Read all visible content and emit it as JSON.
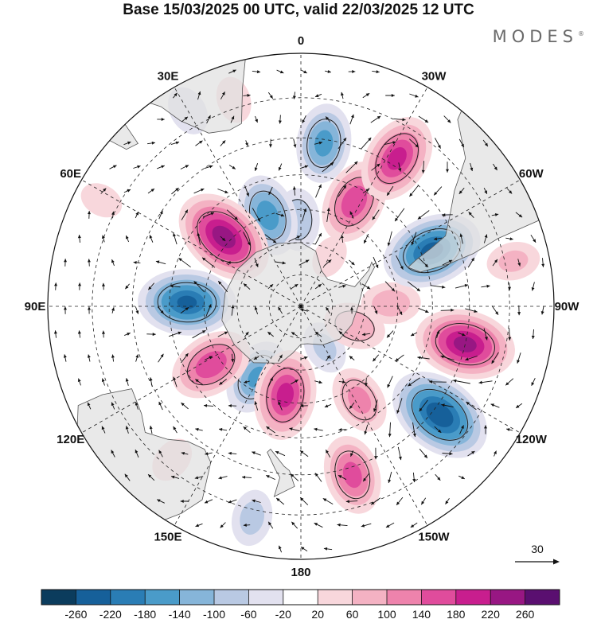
{
  "title": "Base 15/03/2025 00 UTC, valid 22/03/2025 12 UTC",
  "brand": {
    "name": "MODES",
    "mark": "®"
  },
  "map": {
    "projection": "south-polar-stereographic",
    "longitude_labels": [
      {
        "text": "0",
        "lon": 0
      },
      {
        "text": "30E",
        "lon": 30
      },
      {
        "text": "60E",
        "lon": 60
      },
      {
        "text": "90E",
        "lon": 90
      },
      {
        "text": "120E",
        "lon": 120
      },
      {
        "text": "150E",
        "lon": 150
      },
      {
        "text": "180",
        "lon": 180
      },
      {
        "text": "150W",
        "lon": -150
      },
      {
        "text": "120W",
        "lon": -120
      },
      {
        "text": "90W",
        "lon": -90
      },
      {
        "text": "60W",
        "lon": -60
      },
      {
        "text": "30W",
        "lon": -30
      }
    ],
    "latitude_circles": [
      -80,
      -70,
      -60,
      -50,
      -40,
      -30,
      -20
    ],
    "outer_latitude": -20,
    "anomalies": [
      {
        "lon": -8,
        "lat": -41,
        "value": -160
      },
      {
        "lon": -33,
        "lat": -38,
        "value": 200
      },
      {
        "lon": -27,
        "lat": -54,
        "value": 180
      },
      {
        "lon": -67,
        "lat": -47,
        "value": -240
      },
      {
        "lon": -103,
        "lat": -40,
        "value": 240
      },
      {
        "lon": -148,
        "lat": -56,
        "value": 120
      },
      {
        "lon": -128,
        "lat": -38,
        "value": -260
      },
      {
        "lon": -110,
        "lat": -72,
        "value": 100
      },
      {
        "lon": -163,
        "lat": -38,
        "value": 160
      },
      {
        "lon": 170,
        "lat": -62,
        "value": 200
      },
      {
        "lon": 148,
        "lat": -64,
        "value": -150
      },
      {
        "lon": 167,
        "lat": -28,
        "value": -80
      },
      {
        "lon": 123,
        "lat": -57,
        "value": 180
      },
      {
        "lon": 88,
        "lat": -55,
        "value": -230
      },
      {
        "lon": 48,
        "lat": -58,
        "value": 250
      },
      {
        "lon": 20,
        "lat": -60,
        "value": -170
      },
      {
        "lon": 2,
        "lat": -63,
        "value": -100
      },
      {
        "lon": 30,
        "lat": -26,
        "value": -60
      },
      {
        "lon": 18,
        "lat": -28,
        "value": 50
      },
      {
        "lon": 62,
        "lat": -26,
        "value": 40
      },
      {
        "lon": -78,
        "lat": -28,
        "value": 70
      },
      {
        "lon": 140,
        "lat": -32,
        "value": 50
      },
      {
        "lon": -150,
        "lat": -75,
        "value": -70
      },
      {
        "lon": -30,
        "lat": -72,
        "value": 40
      },
      {
        "lon": -88,
        "lat": -62,
        "value": 90
      }
    ],
    "wind_reference": {
      "speed": 30
    }
  },
  "colorbar": {
    "ticks": [
      "-260",
      "-220",
      "-180",
      "-140",
      "-100",
      "-60",
      "-20",
      "20",
      "60",
      "100",
      "140",
      "180",
      "220",
      "260"
    ],
    "colors": [
      "#0b3c5d",
      "#16609a",
      "#2a7db5",
      "#4a9bc9",
      "#86b5d9",
      "#b9c9e3",
      "#e2e1ef",
      "#ffffff",
      "#f8d7dc",
      "#f4b2c3",
      "#ee83ac",
      "#e04c9c",
      "#c81e8e",
      "#981783",
      "#5a0f70"
    ]
  },
  "colors": {
    "land": "#e0e0e0",
    "coast": "#555555",
    "grid": "#222222",
    "vector": "#111111"
  }
}
